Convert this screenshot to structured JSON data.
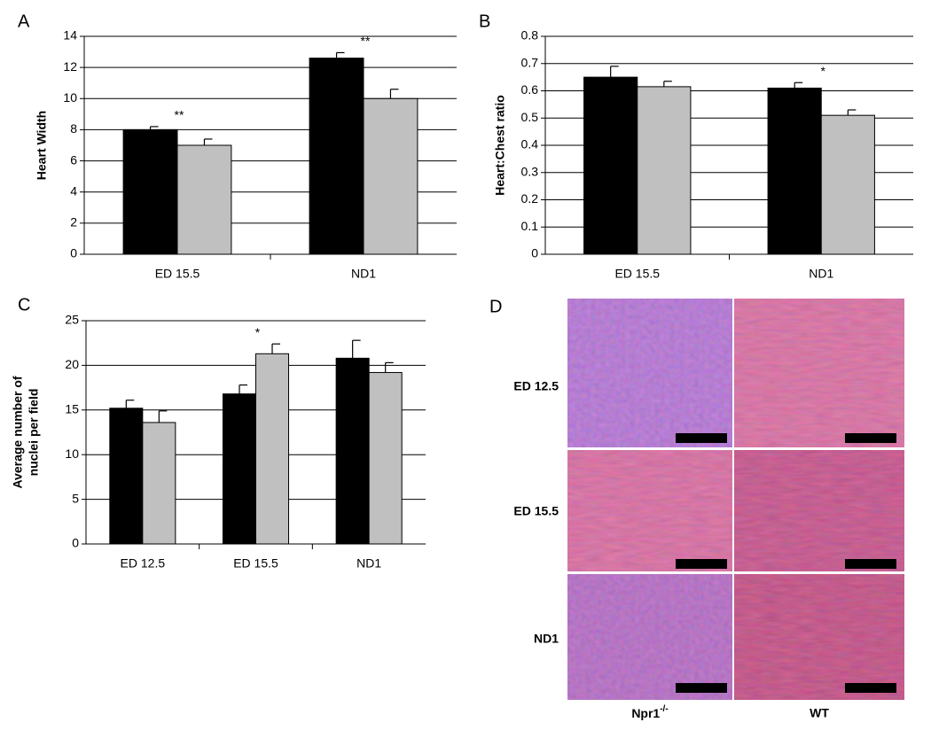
{
  "chart_data": [
    {
      "type": "bar",
      "panel": "A",
      "ylabel": [
        "Heart Width"
      ],
      "categories": [
        "ED 15.5",
        "ND1"
      ],
      "series": [
        {
          "color": "#000000",
          "values": [
            8.0,
            12.6
          ],
          "errors": [
            0.2,
            0.35
          ]
        },
        {
          "color": "#c0c0c0",
          "values": [
            7.0,
            10.0
          ],
          "errors": [
            0.4,
            0.6
          ]
        }
      ],
      "significance": [
        "**",
        "**"
      ],
      "ylim": [
        0,
        14
      ],
      "yticks": [
        0,
        2,
        4,
        6,
        8,
        10,
        12,
        14
      ],
      "grid": true
    },
    {
      "type": "bar",
      "panel": "B",
      "ylabel": [
        "Heart:Chest ratio"
      ],
      "categories": [
        "ED 15.5",
        "ND1"
      ],
      "series": [
        {
          "color": "#000000",
          "values": [
            0.65,
            0.61
          ],
          "errors": [
            0.04,
            0.02
          ]
        },
        {
          "color": "#c0c0c0",
          "values": [
            0.615,
            0.51
          ],
          "errors": [
            0.02,
            0.02
          ]
        }
      ],
      "significance": [
        null,
        "*"
      ],
      "ylim": [
        0,
        0.8
      ],
      "yticks": [
        0,
        0.1,
        0.2,
        0.3,
        0.4,
        0.5,
        0.6,
        0.7,
        0.8
      ],
      "grid": true
    },
    {
      "type": "bar",
      "panel": "C",
      "ylabel": [
        "Average number of",
        "nuclei per field"
      ],
      "categories": [
        "ED 12.5",
        "ED 15.5",
        "ND1"
      ],
      "series": [
        {
          "color": "#000000",
          "values": [
            15.2,
            16.8,
            20.8
          ],
          "errors": [
            0.9,
            1.0,
            2.0
          ]
        },
        {
          "color": "#c0c0c0",
          "values": [
            13.6,
            21.3,
            19.2
          ],
          "errors": [
            1.3,
            1.1,
            1.1
          ]
        }
      ],
      "significance": [
        null,
        "*",
        null
      ],
      "ylim": [
        0,
        25
      ],
      "yticks": [
        0,
        5,
        10,
        15,
        20,
        25
      ],
      "grid": true
    }
  ],
  "histology": {
    "panel": "D",
    "rows": [
      "ED 12.5",
      "ED 15.5",
      "ND1"
    ],
    "columns": [
      {
        "label": "Npr1",
        "superscript": "-/-"
      },
      {
        "label": "WT"
      }
    ]
  }
}
